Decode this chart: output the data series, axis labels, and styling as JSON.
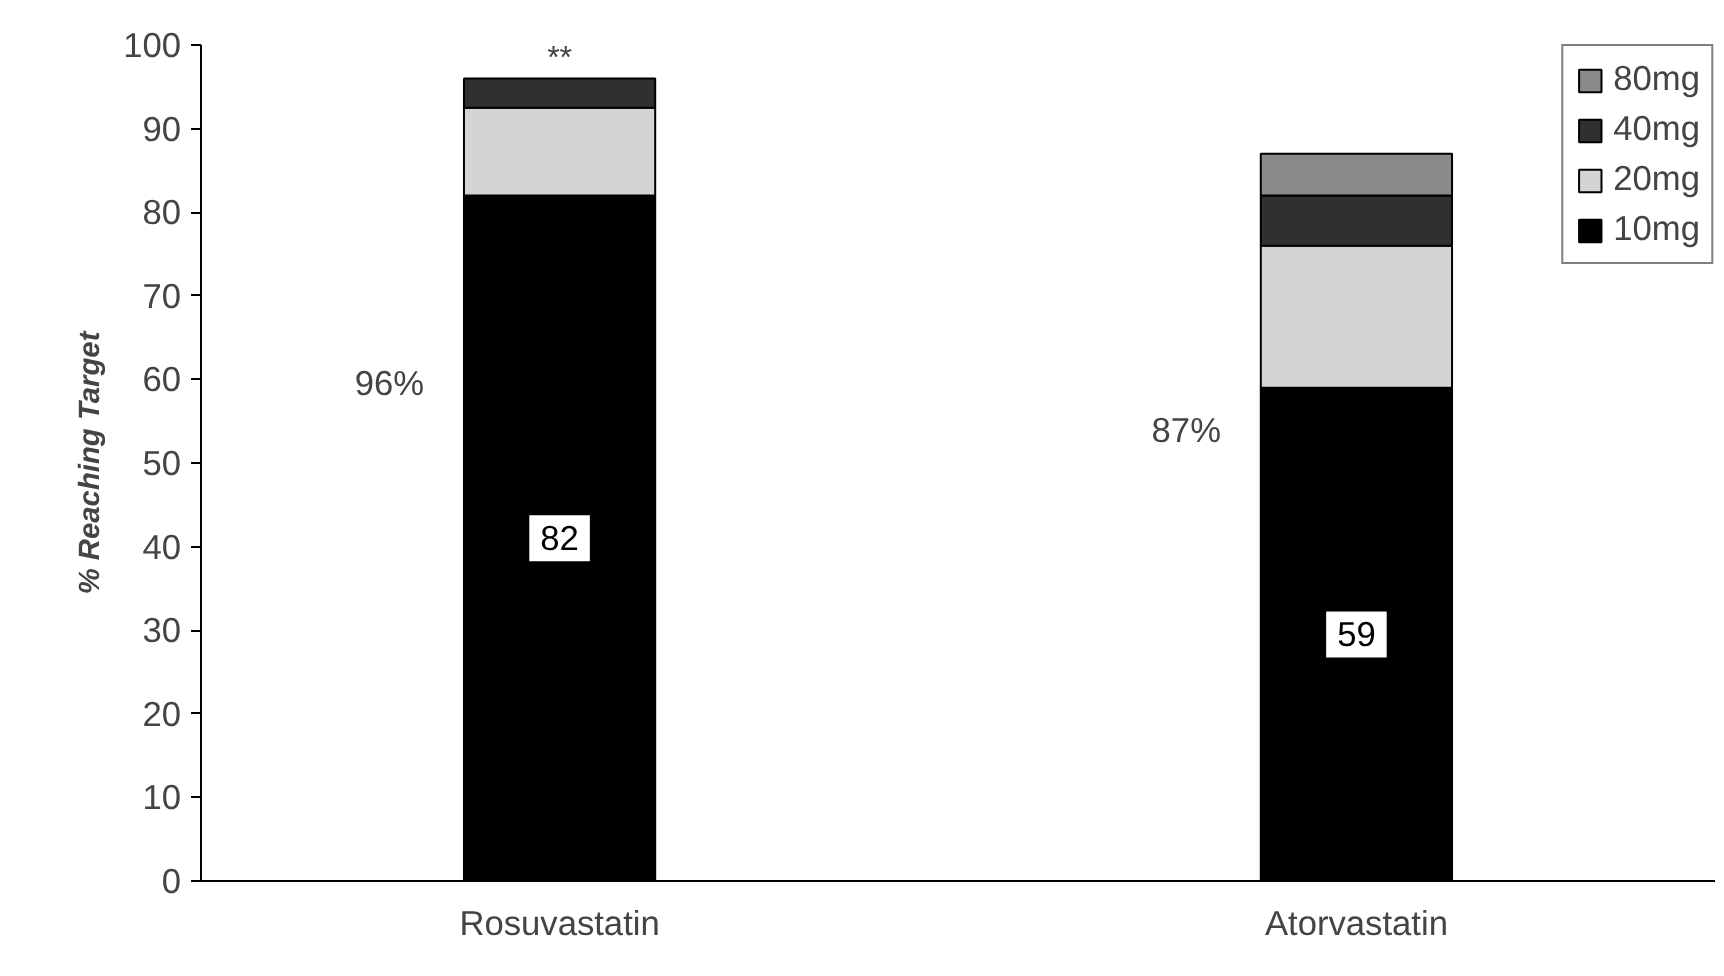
{
  "chart_data": {
    "type": "bar",
    "stacked": true,
    "ylabel": "% Reaching Target",
    "categories": [
      "Rosuvastatin",
      "Atorvastatin"
    ],
    "series": [
      {
        "name": "10mg",
        "color": "#000000",
        "values": [
          82,
          59
        ],
        "value_labels": [
          "82",
          "59"
        ]
      },
      {
        "name": "20mg",
        "color": "#d4d4d4",
        "values": [
          10.5,
          17
        ]
      },
      {
        "name": "40mg",
        "color": "#303030",
        "values": [
          3.5,
          6
        ]
      },
      {
        "name": "80mg",
        "color": "#8a8a8a",
        "values": [
          null,
          5
        ]
      }
    ],
    "totals": [
      "96%",
      "87%"
    ],
    "annotations": [
      {
        "text": "**",
        "x": "Rosuvastatin",
        "y": 96
      }
    ],
    "ylim": [
      0,
      100
    ],
    "yticks": [
      0,
      10,
      20,
      30,
      40,
      50,
      60,
      70,
      80,
      90,
      100
    ],
    "grid": false,
    "legend": "top right"
  }
}
